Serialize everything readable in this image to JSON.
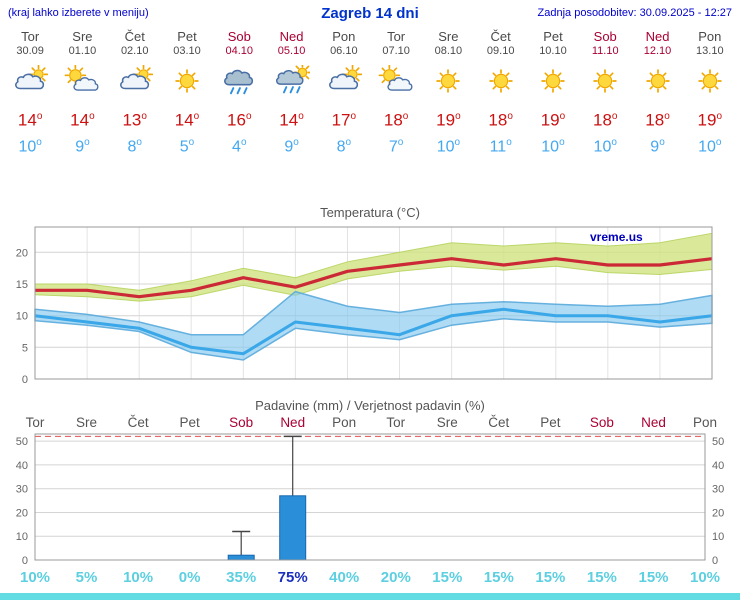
{
  "header": {
    "menu_hint": "(kraj lahko izberete v meniju)",
    "title": "Zagreb 14 dni",
    "last_update": "Zadnja posodobitev: 30.09.2025 - 12:27"
  },
  "units": {
    "degree": "o"
  },
  "colors": {
    "link_blue": "#0000cc",
    "title_blue": "#0033cc",
    "tmax_red": "#cc1111",
    "tmin_blue": "#44a8f0",
    "weekday_gray": "#555555",
    "weekend_red": "#aa0033",
    "probability_cyan": "#5ccfe0",
    "probability_highlight_blue": "#1b2fbe",
    "footer_teal": "#63dbe2"
  },
  "forecast": {
    "days": [
      {
        "name": "Tor",
        "date": "30.09",
        "icon": "mostly-cloudy",
        "tmax": 14,
        "tmin": 10,
        "weekend": false
      },
      {
        "name": "Sre",
        "date": "01.10",
        "icon": "partly-sunny",
        "tmax": 14,
        "tmin": 9,
        "weekend": false
      },
      {
        "name": "Čet",
        "date": "02.10",
        "icon": "mostly-cloudy",
        "tmax": 13,
        "tmin": 8,
        "weekend": false
      },
      {
        "name": "Pet",
        "date": "03.10",
        "icon": "sunny",
        "tmax": 14,
        "tmin": 5,
        "weekend": false
      },
      {
        "name": "Sob",
        "date": "04.10",
        "icon": "rain",
        "tmax": 16,
        "tmin": 4,
        "weekend": true
      },
      {
        "name": "Ned",
        "date": "05.10",
        "icon": "rain-sun",
        "tmax": 14,
        "tmin": 9,
        "weekend": true
      },
      {
        "name": "Pon",
        "date": "06.10",
        "icon": "mostly-cloudy",
        "tmax": 17,
        "tmin": 8,
        "weekend": false
      },
      {
        "name": "Tor",
        "date": "07.10",
        "icon": "partly-sunny",
        "tmax": 18,
        "tmin": 7,
        "weekend": false
      },
      {
        "name": "Sre",
        "date": "08.10",
        "icon": "sunny",
        "tmax": 19,
        "tmin": 10,
        "weekend": false
      },
      {
        "name": "Čet",
        "date": "09.10",
        "icon": "sunny",
        "tmax": 18,
        "tmin": 11,
        "weekend": false
      },
      {
        "name": "Pet",
        "date": "10.10",
        "icon": "sunny",
        "tmax": 19,
        "tmin": 10,
        "weekend": false
      },
      {
        "name": "Sob",
        "date": "11.10",
        "icon": "sunny",
        "tmax": 18,
        "tmin": 10,
        "weekend": true
      },
      {
        "name": "Ned",
        "date": "12.10",
        "icon": "sunny",
        "tmax": 18,
        "tmin": 9,
        "weekend": true
      },
      {
        "name": "Pon",
        "date": "13.10",
        "icon": "sunny",
        "tmax": 19,
        "tmin": 10,
        "weekend": false
      }
    ]
  },
  "chart_data": [
    {
      "id": "temperature",
      "type": "line",
      "title": "Temperatura (°C)",
      "categories": [
        "Tor",
        "Sre",
        "Čet",
        "Pet",
        "Sob",
        "Ned",
        "Pon",
        "Tor",
        "Sre",
        "Čet",
        "Pet",
        "Sob",
        "Ned",
        "Pon"
      ],
      "ylim": [
        0,
        24
      ],
      "yticks": [
        0,
        5,
        10,
        15,
        20
      ],
      "grid": true,
      "watermark": "vreme.us",
      "band_colors": {
        "max": "rgba(207,228,128,0.8)",
        "min": "rgba(132,200,238,0.65)"
      },
      "series": [
        {
          "name": "max-temp",
          "color": "#cc2936",
          "values": [
            14,
            14,
            13,
            14,
            16,
            14.5,
            17,
            18,
            19,
            18,
            19,
            18,
            18,
            19
          ]
        },
        {
          "name": "max-temp-range-upper",
          "values": [
            15,
            15,
            14,
            15.5,
            17.5,
            16,
            18.5,
            20,
            21.5,
            21,
            21.5,
            21,
            21.5,
            23
          ]
        },
        {
          "name": "max-temp-range-lower",
          "values": [
            13.3,
            13,
            12.3,
            13,
            14.8,
            13.2,
            15.8,
            17,
            17.8,
            17.2,
            17.8,
            16.8,
            16.5,
            17.3
          ]
        },
        {
          "name": "min-temp",
          "color": "#3aa7e8",
          "values": [
            10,
            9,
            8,
            5,
            4,
            9,
            8,
            7,
            10,
            11,
            10,
            10,
            9,
            10
          ]
        },
        {
          "name": "min-temp-range-upper",
          "values": [
            11,
            10.2,
            9,
            7,
            7,
            13.8,
            11.5,
            10.5,
            11.8,
            12.2,
            11.8,
            11.5,
            11.8,
            13.2
          ]
        },
        {
          "name": "min-temp-range-lower",
          "values": [
            9.2,
            8.5,
            7.5,
            4.2,
            3,
            8,
            7,
            6.2,
            8.5,
            9.5,
            9,
            9,
            8.2,
            8.8
          ]
        }
      ]
    },
    {
      "id": "precipitation",
      "type": "bar",
      "title": "Padavine (mm) / Verjetnost padavin (%)",
      "categories": [
        "Tor",
        "Sre",
        "Čet",
        "Pet",
        "Sob",
        "Ned",
        "Pon",
        "Tor",
        "Sre",
        "Čet",
        "Pet",
        "Sob",
        "Ned",
        "Pon"
      ],
      "weekend_flags": [
        false,
        false,
        false,
        false,
        true,
        true,
        false,
        false,
        false,
        false,
        false,
        true,
        true,
        false
      ],
      "ylim": [
        0,
        53
      ],
      "yticks": [
        0,
        10,
        20,
        30,
        40,
        50
      ],
      "precip_mm": [
        0,
        0,
        0,
        0,
        2,
        27,
        0,
        0,
        0,
        0,
        0,
        0,
        0,
        0
      ],
      "precip_max_mm": [
        0,
        0,
        0,
        0,
        12,
        52,
        0,
        0,
        0,
        0,
        0,
        0,
        0,
        0
      ],
      "probability_pct": [
        10,
        5,
        10,
        0,
        35,
        75,
        40,
        20,
        15,
        15,
        15,
        15,
        15,
        10
      ],
      "probability_highlight_threshold": 50,
      "bar_color": "#2a8fd8",
      "ymax_line": {
        "value": 52,
        "color": "#e05050",
        "dash": true
      }
    }
  ]
}
